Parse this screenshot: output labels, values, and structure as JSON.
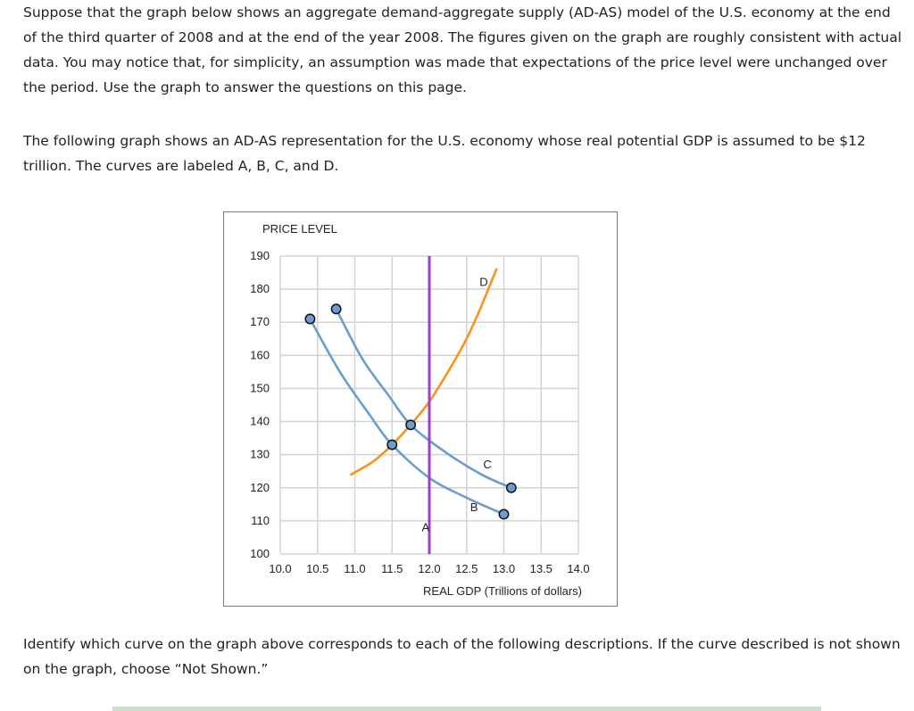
{
  "intro": {
    "paragraph1": "Suppose that the graph below shows an aggregate demand-aggregate supply (AD-AS) model of the U.S. economy at the end of the third quarter of 2008 and at the end of the year 2008. The figures given on the graph are roughly consistent with actual data. You may notice that, for simplicity, an assumption was made that expectations of the price level were unchanged over the period. Use the graph to answer the questions on this page.",
    "paragraph2": "The following graph shows an AD-AS representation for the U.S. economy whose real potential GDP is assumed to be $12 trillion. The curves are labeled A, B, C, and D."
  },
  "question": {
    "text": "Identify which curve on the graph above corresponds to each of the following descriptions. If the curve described is not shown on the graph, choose “Not Shown.”"
  },
  "chart_data": {
    "type": "line",
    "title": "",
    "xlabel": "REAL GDP (Trillions of dollars)",
    "ylabel": "PRICE LEVEL",
    "xlim": [
      10.0,
      14.0
    ],
    "ylim": [
      100,
      190
    ],
    "x_ticks": [
      "10.0",
      "10.5",
      "11.0",
      "11.5",
      "12.0",
      "12.5",
      "13.0",
      "13.5",
      "14.0"
    ],
    "y_ticks": [
      "100",
      "110",
      "120",
      "130",
      "140",
      "150",
      "160",
      "170",
      "180",
      "190"
    ],
    "grid": true,
    "legend": "none (curves labeled inline)",
    "series": [
      {
        "name": "A",
        "color": "#9b3fd1",
        "shape": "vertical line",
        "points": [
          [
            12.0,
            100
          ],
          [
            12.0,
            190
          ]
        ],
        "label_position": [
          11.95,
          108
        ]
      },
      {
        "name": "B",
        "color": "#6a9ecf",
        "markers": [
          [
            10.4,
            171
          ],
          [
            11.5,
            133
          ],
          [
            13.0,
            112
          ]
        ],
        "points": [
          [
            10.4,
            171
          ],
          [
            10.8,
            155
          ],
          [
            11.2,
            142
          ],
          [
            11.5,
            133
          ],
          [
            12.0,
            123
          ],
          [
            12.5,
            117
          ],
          [
            13.0,
            112
          ]
        ],
        "label_position": [
          12.6,
          114
        ]
      },
      {
        "name": "C",
        "color": "#6a9ecf",
        "markers": [
          [
            10.75,
            174
          ],
          [
            11.75,
            139
          ],
          [
            13.1,
            120
          ]
        ],
        "points": [
          [
            10.75,
            174
          ],
          [
            11.1,
            159
          ],
          [
            11.45,
            148
          ],
          [
            11.75,
            139
          ],
          [
            12.2,
            131
          ],
          [
            12.7,
            124
          ],
          [
            13.1,
            120
          ]
        ],
        "label_position": [
          12.78,
          127
        ]
      },
      {
        "name": "D",
        "color": "#f7941d",
        "points": [
          [
            10.95,
            124
          ],
          [
            11.25,
            128
          ],
          [
            11.5,
            133
          ],
          [
            11.75,
            139
          ],
          [
            12.0,
            146
          ],
          [
            12.25,
            155
          ],
          [
            12.5,
            165
          ],
          [
            12.7,
            175
          ],
          [
            12.9,
            186
          ]
        ],
        "label_position": [
          12.73,
          182
        ]
      }
    ]
  }
}
